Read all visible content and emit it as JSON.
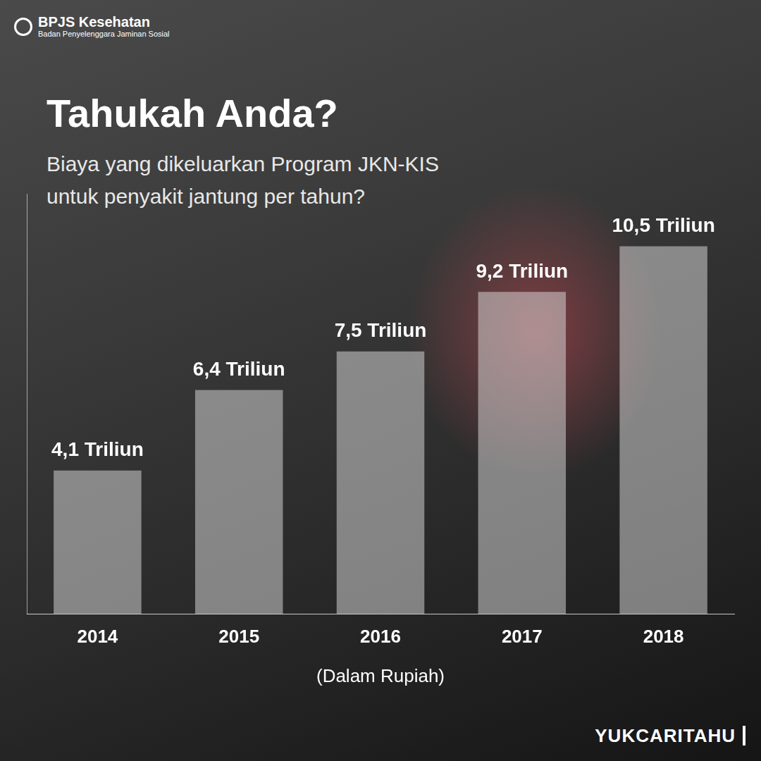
{
  "chart_data": {
    "type": "bar",
    "title": "Tahukah Anda?",
    "subtitle": [
      "Biaya yang dikeluarkan Program JKN-KIS",
      "untuk penyakit jantung per tahun?"
    ],
    "categories": [
      "2014",
      "2015",
      "2016",
      "2017",
      "2018"
    ],
    "values": [
      4.1,
      6.4,
      7.5,
      9.2,
      10.5
    ],
    "value_labels": [
      "4,1 Triliun",
      "6,4 Triliun",
      "7,5 Triliun",
      "9,2 Triliun",
      "10,5 Triliun"
    ],
    "xlabel": "(Dalam Rupiah)",
    "color": "#e0e0e0",
    "ylim": [
      0,
      12
    ],
    "grid": false,
    "data_labels": true,
    "tick_labels": "x"
  },
  "header": {
    "logo": "BPJS Kesehatan",
    "logo_subtitle": "Badan Penyelenggara Jaminan Sosial"
  },
  "footer": "YUKCARITAHU"
}
